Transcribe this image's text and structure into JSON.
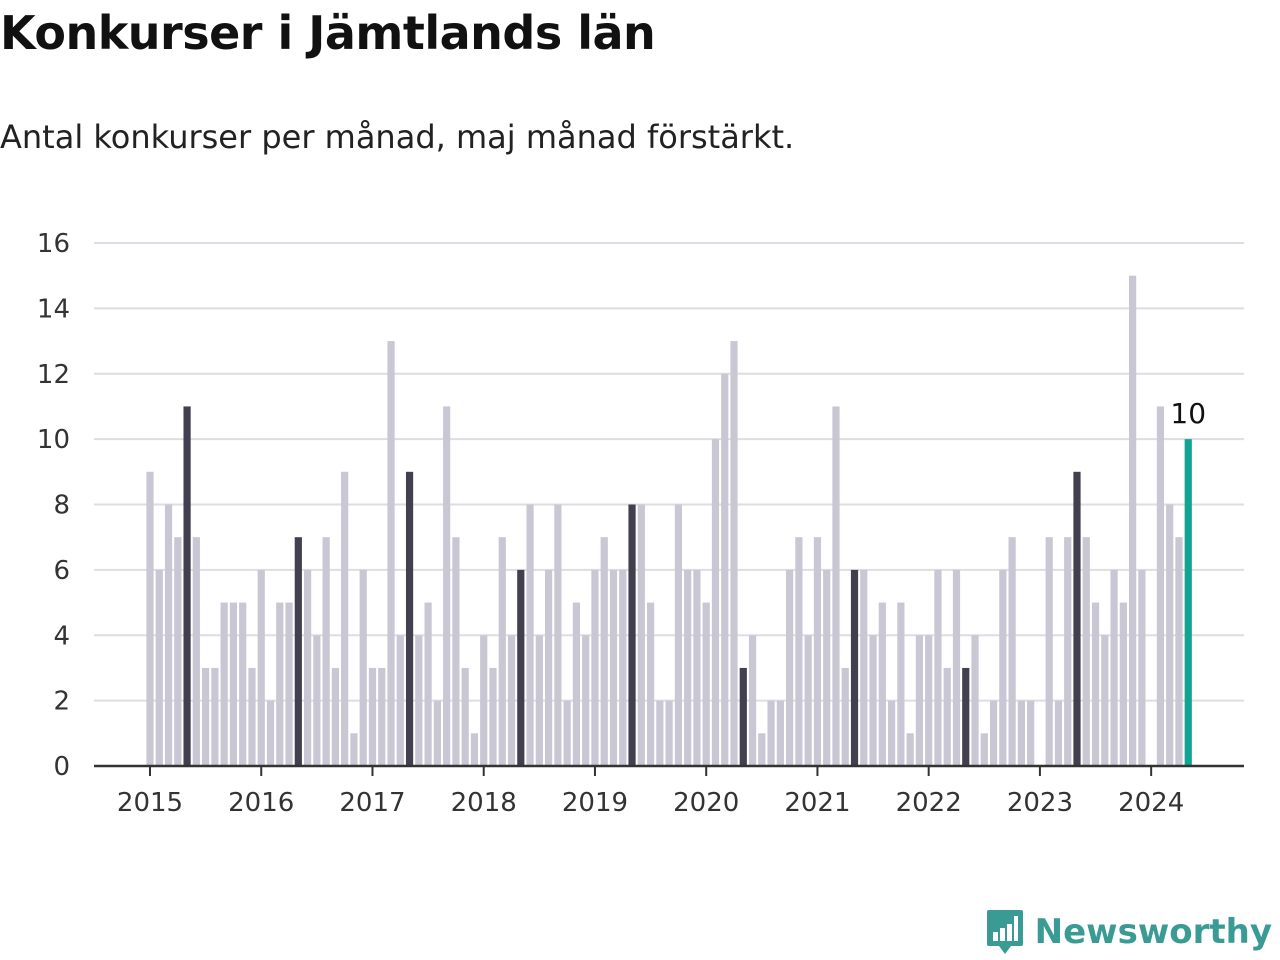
{
  "chart_data": {
    "type": "bar",
    "title": "Konkurser i Jämtlands län",
    "subtitle": "Antal konkurser per månad, maj månad förstärkt.",
    "xlabel": "",
    "ylabel": "",
    "ylim": [
      0,
      16
    ],
    "yticks": [
      "0",
      "2",
      "4",
      "6",
      "8",
      "10",
      "12",
      "14",
      "16"
    ],
    "xticks": [
      "2015",
      "2016",
      "2017",
      "2018",
      "2019",
      "2020",
      "2021",
      "2022",
      "2023",
      "2024"
    ],
    "grid": true,
    "start_month": "2015-01",
    "values": [
      9,
      6,
      8,
      7,
      11,
      7,
      3,
      3,
      5,
      5,
      5,
      3,
      6,
      2,
      5,
      5,
      7,
      6,
      4,
      7,
      3,
      9,
      1,
      6,
      3,
      3,
      13,
      4,
      9,
      4,
      5,
      2,
      11,
      7,
      3,
      1,
      4,
      3,
      7,
      4,
      6,
      8,
      4,
      6,
      8,
      2,
      5,
      4,
      6,
      7,
      6,
      6,
      8,
      8,
      5,
      2,
      2,
      8,
      6,
      6,
      5,
      10,
      12,
      13,
      3,
      4,
      1,
      2,
      2,
      6,
      7,
      4,
      7,
      6,
      11,
      3,
      6,
      6,
      4,
      5,
      2,
      5,
      1,
      4,
      4,
      6,
      3,
      6,
      3,
      4,
      1,
      2,
      6,
      7,
      2,
      2,
      0,
      7,
      2,
      7,
      9,
      7,
      5,
      4,
      6,
      5,
      15,
      6,
      0,
      11,
      8,
      7,
      10
    ],
    "highlight_month": 5,
    "latest_label": "10",
    "colors": {
      "bar": "#c8c7d3",
      "highlight": "#42404f",
      "latest": "#12a394",
      "grid": "#dedde3",
      "axis": "#333333",
      "text": "#333333"
    }
  },
  "brand": {
    "name": "Newsworthy",
    "icon": "bar-chart-speech-bubble-icon",
    "color": "#3a9b95"
  }
}
